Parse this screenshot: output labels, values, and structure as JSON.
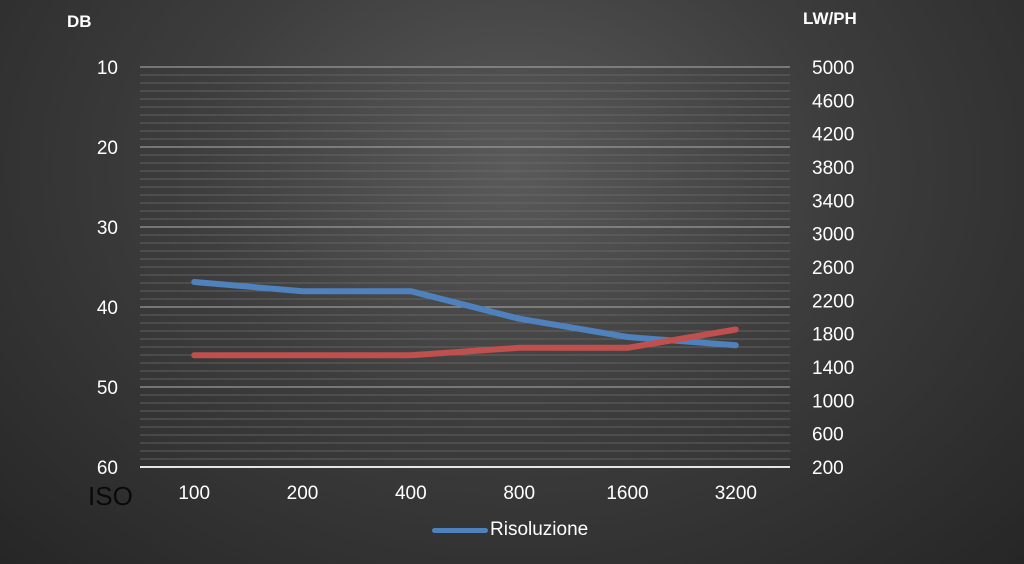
{
  "chart_data": {
    "type": "line",
    "xlabel": "ISO",
    "categories": [
      "100",
      "200",
      "400",
      "800",
      "1600",
      "3200"
    ],
    "y_left": {
      "label": "DB",
      "lim": [
        10,
        60
      ],
      "ticks": [
        10,
        20,
        30,
        40,
        50,
        60
      ],
      "inverted": true
    },
    "y_right": {
      "label": "LW/PH",
      "lim": [
        200,
        5000
      ],
      "ticks": [
        5000,
        4600,
        4200,
        3800,
        3400,
        3000,
        2600,
        2200,
        1800,
        1400,
        1000,
        600,
        200
      ]
    },
    "series": [
      {
        "name": "Risoluzione",
        "color": "#4f81bd",
        "axis": "right",
        "values": [
          2420,
          2310,
          2310,
          1980,
          1760,
          1660
        ]
      },
      {
        "color": "#c0504d",
        "axis": "right",
        "values": [
          1540,
          1540,
          1540,
          1630,
          1630,
          1850
        ]
      }
    ],
    "grid": true,
    "legend": "bottom"
  }
}
